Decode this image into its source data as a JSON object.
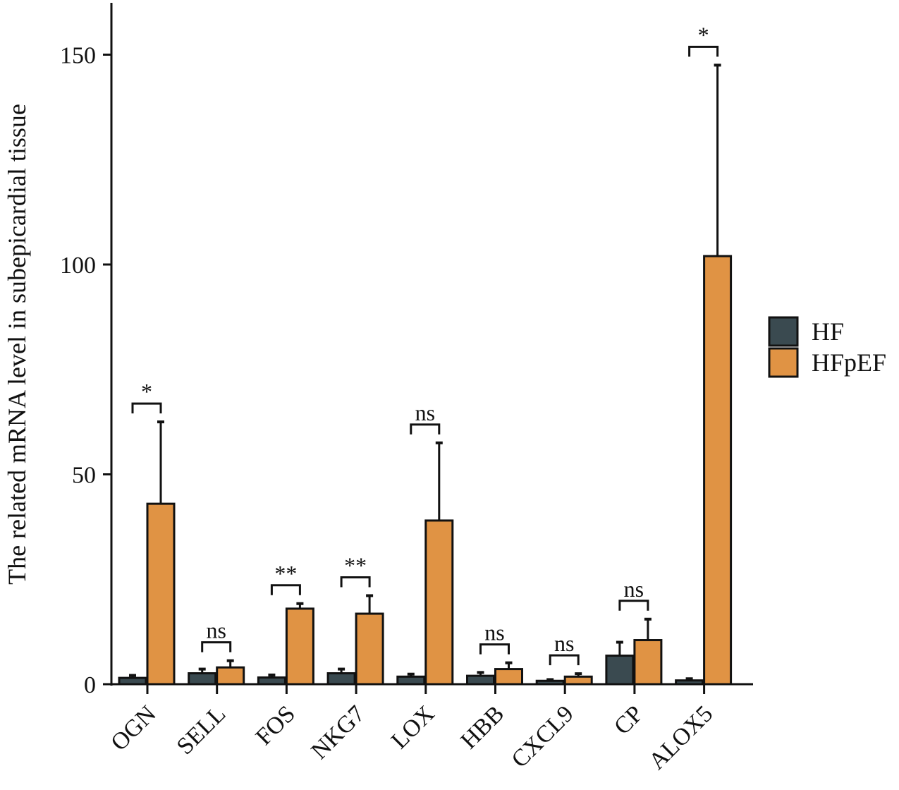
{
  "chart_data": {
    "type": "bar",
    "ylabel": "The related mRNA level in subepicardial tissue",
    "xlabel": "",
    "ylim": [
      0,
      162
    ],
    "yticks": [
      0,
      50,
      100,
      150
    ],
    "categories": [
      "OGN",
      "SELL",
      "FOS",
      "NKG7",
      "LOX",
      "HBB",
      "CXCL9",
      "CP",
      "ALOX5"
    ],
    "series": [
      {
        "name": "HF",
        "color": "#3a4a50",
        "values": [
          1.5,
          2.6,
          1.6,
          2.6,
          1.8,
          2.0,
          0.8,
          6.8,
          0.9
        ],
        "errors": [
          0.6,
          1.0,
          0.6,
          1.0,
          0.6,
          0.8,
          0.3,
          3.2,
          0.4
        ]
      },
      {
        "name": "HFpEF",
        "color": "#e09344",
        "values": [
          43.0,
          4.0,
          18.0,
          16.8,
          39.0,
          3.6,
          1.8,
          10.5,
          102.0
        ],
        "errors": [
          19.5,
          1.6,
          1.2,
          4.3,
          18.5,
          1.5,
          0.7,
          5.0,
          45.5
        ]
      }
    ],
    "significance": [
      "*",
      "ns",
      "**",
      "**",
      "ns",
      "ns",
      "ns",
      "ns",
      "*"
    ],
    "legend": {
      "position": "right",
      "entries": [
        "HF",
        "HFpEF"
      ]
    },
    "grid": false
  }
}
